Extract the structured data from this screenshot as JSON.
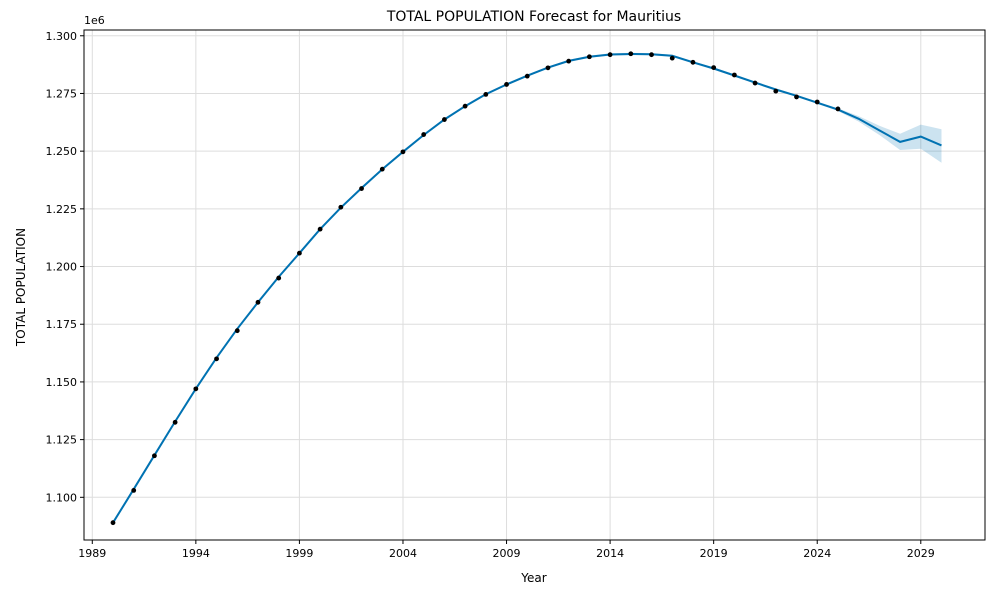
{
  "chart_data": {
    "type": "line",
    "title": "TOTAL POPULATION Forecast for Mauritius",
    "xlabel": "Year",
    "ylabel": "TOTAL POPULATION",
    "y_offset_label": "1e6",
    "xlim": [
      1988.6,
      2032.1
    ],
    "ylim": [
      1.0815,
      1.3025
    ],
    "x_ticks": [
      1989,
      1994,
      1999,
      2004,
      2009,
      2014,
      2019,
      2024,
      2029
    ],
    "y_ticks": [
      1.1,
      1.125,
      1.15,
      1.175,
      1.2,
      1.225,
      1.25,
      1.275,
      1.3
    ],
    "y_tick_labels": [
      "1.100",
      "1.125",
      "1.150",
      "1.175",
      "1.200",
      "1.225",
      "1.250",
      "1.275",
      "1.300"
    ],
    "grid": true,
    "colors": {
      "forecast_line": "#0072B2",
      "interval": "#0072B2",
      "observed": "#000000"
    },
    "observed": {
      "x": [
        1990,
        1991,
        1992,
        1993,
        1994,
        1995,
        1996,
        1997,
        1998,
        1999,
        2000,
        2001,
        2002,
        2003,
        2004,
        2005,
        2006,
        2007,
        2008,
        2009,
        2010,
        2011,
        2012,
        2013,
        2014,
        2015,
        2016,
        2017,
        2018,
        2019,
        2020,
        2021,
        2022,
        2023,
        2024,
        2025
      ],
      "y": [
        1.089,
        1.103,
        1.118,
        1.1325,
        1.147,
        1.16,
        1.1722,
        1.1845,
        1.195,
        1.2058,
        1.2162,
        1.2257,
        1.2338,
        1.2422,
        1.2497,
        1.2572,
        1.2637,
        1.2695,
        1.2746,
        1.2789,
        1.2825,
        1.2861,
        1.289,
        1.2909,
        1.2918,
        1.2922,
        1.2918,
        1.2903,
        1.2885,
        1.2862,
        1.283,
        1.2795,
        1.276,
        1.2735,
        1.2713,
        1.2683
      ]
    },
    "forecast": {
      "x": [
        1990,
        1991,
        1992,
        1993,
        1994,
        1995,
        1996,
        1997,
        1998,
        1999,
        2000,
        2001,
        2002,
        2003,
        2004,
        2005,
        2006,
        2007,
        2008,
        2009,
        2010,
        2011,
        2012,
        2013,
        2014,
        2015,
        2016,
        2017,
        2018,
        2019,
        2020,
        2021,
        2022,
        2023,
        2024,
        2025,
        2026,
        2027,
        2028,
        2029,
        2030
      ],
      "y": [
        1.089,
        1.1035,
        1.1182,
        1.1328,
        1.147,
        1.1605,
        1.173,
        1.1845,
        1.1955,
        1.2058,
        1.2162,
        1.2255,
        1.234,
        1.2422,
        1.2497,
        1.257,
        1.2637,
        1.2695,
        1.2747,
        1.2789,
        1.2827,
        1.2862,
        1.2891,
        1.2909,
        1.2919,
        1.2921,
        1.292,
        1.2913,
        1.2885,
        1.2858,
        1.2828,
        1.2797,
        1.2767,
        1.274,
        1.271,
        1.268,
        1.264,
        1.259,
        1.254,
        1.2563,
        1.2525
      ],
      "lower": [
        1.0885,
        1.103,
        1.1177,
        1.1323,
        1.1465,
        1.16,
        1.1725,
        1.184,
        1.195,
        1.2053,
        1.2157,
        1.225,
        1.2335,
        1.2417,
        1.2492,
        1.2565,
        1.2632,
        1.269,
        1.2742,
        1.2784,
        1.2822,
        1.2857,
        1.2886,
        1.2904,
        1.2914,
        1.2916,
        1.2915,
        1.2908,
        1.288,
        1.2853,
        1.2823,
        1.2792,
        1.2762,
        1.2735,
        1.2705,
        1.2674,
        1.2628,
        1.257,
        1.2505,
        1.251,
        1.245
      ],
      "upper": [
        1.0895,
        1.104,
        1.1187,
        1.1333,
        1.1475,
        1.161,
        1.1735,
        1.185,
        1.196,
        1.2063,
        1.2167,
        1.226,
        1.2345,
        1.2427,
        1.2502,
        1.2575,
        1.2642,
        1.27,
        1.2752,
        1.2794,
        1.2832,
        1.2867,
        1.2896,
        1.2914,
        1.2924,
        1.2926,
        1.2925,
        1.2918,
        1.289,
        1.2863,
        1.2833,
        1.2802,
        1.2772,
        1.2745,
        1.2715,
        1.2686,
        1.2652,
        1.261,
        1.2575,
        1.2615,
        1.2595
      ]
    }
  }
}
